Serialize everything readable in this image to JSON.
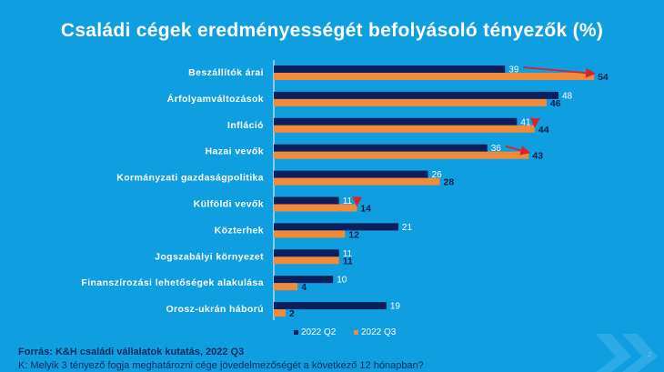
{
  "chart_data": {
    "type": "bar",
    "orientation": "horizontal",
    "title": "Családi cégek eredményességét befolyásoló tényezők (%)",
    "categories": [
      "Beszállítók árai",
      "Árfolyamváltozások",
      "Infláció",
      "Hazai vevők",
      "Kormányzati gazdaságpolitika",
      "Külföldi vevők",
      "Közterhek",
      "Jogszabályi környezet",
      "Finanszírozási lehetőségek alakulása",
      "Orosz-ukrán háború"
    ],
    "series": [
      {
        "name": "2022 Q2",
        "color": "#0a1f5c",
        "values": [
          39,
          48,
          41,
          36,
          26,
          11,
          21,
          11,
          10,
          19
        ]
      },
      {
        "name": "2022 Q3",
        "color": "#f28a3a",
        "values": [
          54,
          46,
          44,
          43,
          28,
          14,
          12,
          11,
          4,
          2
        ]
      }
    ],
    "increase_arrows": [
      0,
      2,
      3,
      5
    ],
    "arrow_color": "#d9232d",
    "xlim": [
      0,
      60
    ],
    "legend_position": "bottom",
    "xlabel": "",
    "ylabel": ""
  },
  "footer": {
    "source": "Forrás: K&H családi vállalatok kutatás, 2022 Q3",
    "question": "K: Melyik 3 tényező fogja meghatározni cége jövedelmezőségét a következő 12 hónapban?"
  },
  "page_number": "2"
}
